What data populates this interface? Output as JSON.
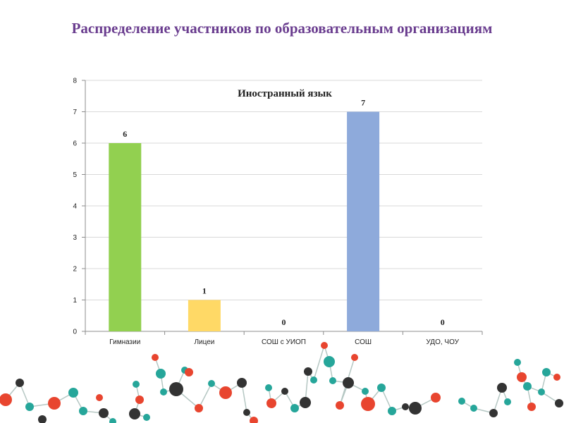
{
  "slide": {
    "title": "Распределение участников по образовательным организациям"
  },
  "chart_data": {
    "type": "bar",
    "title": "Иностранный язык",
    "categories": [
      "Гимназии",
      "Лицеи",
      "СОШ с УИОП",
      "СОШ",
      "УДО, ЧОУ"
    ],
    "values": [
      6,
      1,
      0,
      7,
      0
    ],
    "data_labels": [
      "6",
      "1",
      "0",
      "7",
      "0"
    ],
    "colors": [
      "#92d050",
      "#ffd966",
      "#c0504d",
      "#8eaadb",
      "#a5a5a5"
    ],
    "ylim": [
      0,
      8
    ],
    "yticks": [
      "0",
      "1",
      "2",
      "3",
      "4",
      "5",
      "6",
      "7",
      "8"
    ],
    "grid": true,
    "legend": "none",
    "xlabel": "",
    "ylabel": ""
  },
  "decor": {
    "dot_colors": [
      "#26a69a",
      "#e8452f",
      "#333333"
    ]
  }
}
